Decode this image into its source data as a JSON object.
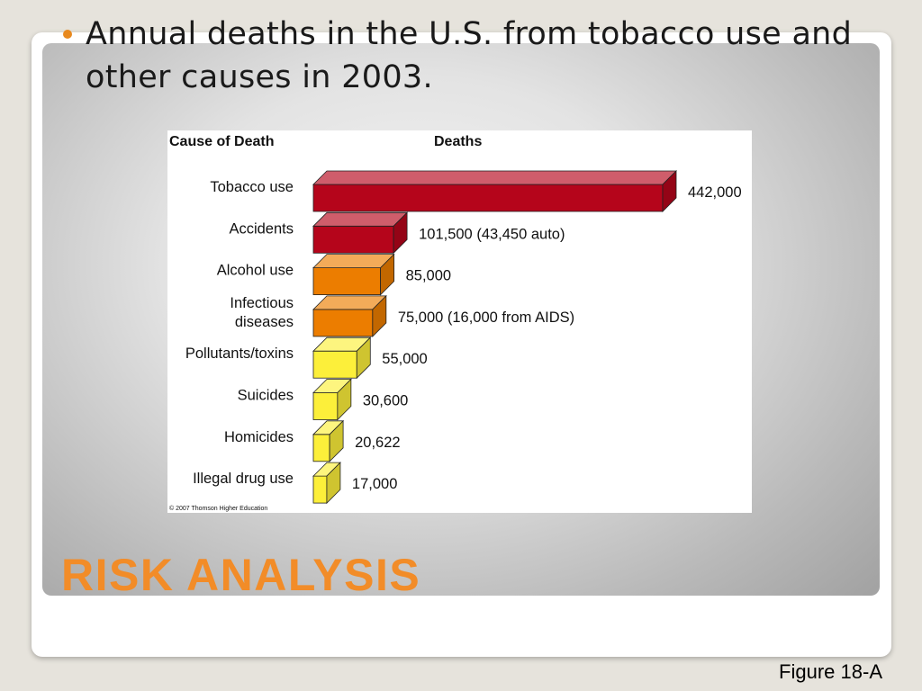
{
  "bullet": {
    "text": "Annual deaths in the U.S. from tobacco use and other causes in 2003."
  },
  "slide_title": "RISK ANALYSIS",
  "figure_label": "Figure 18-A",
  "colors": {
    "accent": "#f28c28",
    "bullet": "#e8891e"
  },
  "chart_data": {
    "type": "bar",
    "orientation": "horizontal",
    "category_header": "Cause of Death",
    "value_header": "Deaths",
    "categories": [
      "Tobacco use",
      "Accidents",
      "Alcohol use",
      "Infectious diseases",
      "Pollutants/toxins",
      "Suicides",
      "Homicides",
      "Illegal drug use"
    ],
    "values": [
      442000,
      101500,
      85000,
      75000,
      55000,
      30600,
      20622,
      17000
    ],
    "data_labels": [
      "442,000",
      "101,500 (43,450 auto)",
      "85,000",
      "75,000 (16,000 from AIDS)",
      "55,000",
      "30,600",
      "20,622",
      "17,000"
    ],
    "bar_colors": [
      "#b5051b",
      "#b5051b",
      "#ec7d00",
      "#ec7d00",
      "#fcef3a",
      "#fcef3a",
      "#fcef3a",
      "#fcef3a"
    ],
    "copyright": "© 2007 Thomson Higher Education",
    "grid": false,
    "legend": "none"
  }
}
